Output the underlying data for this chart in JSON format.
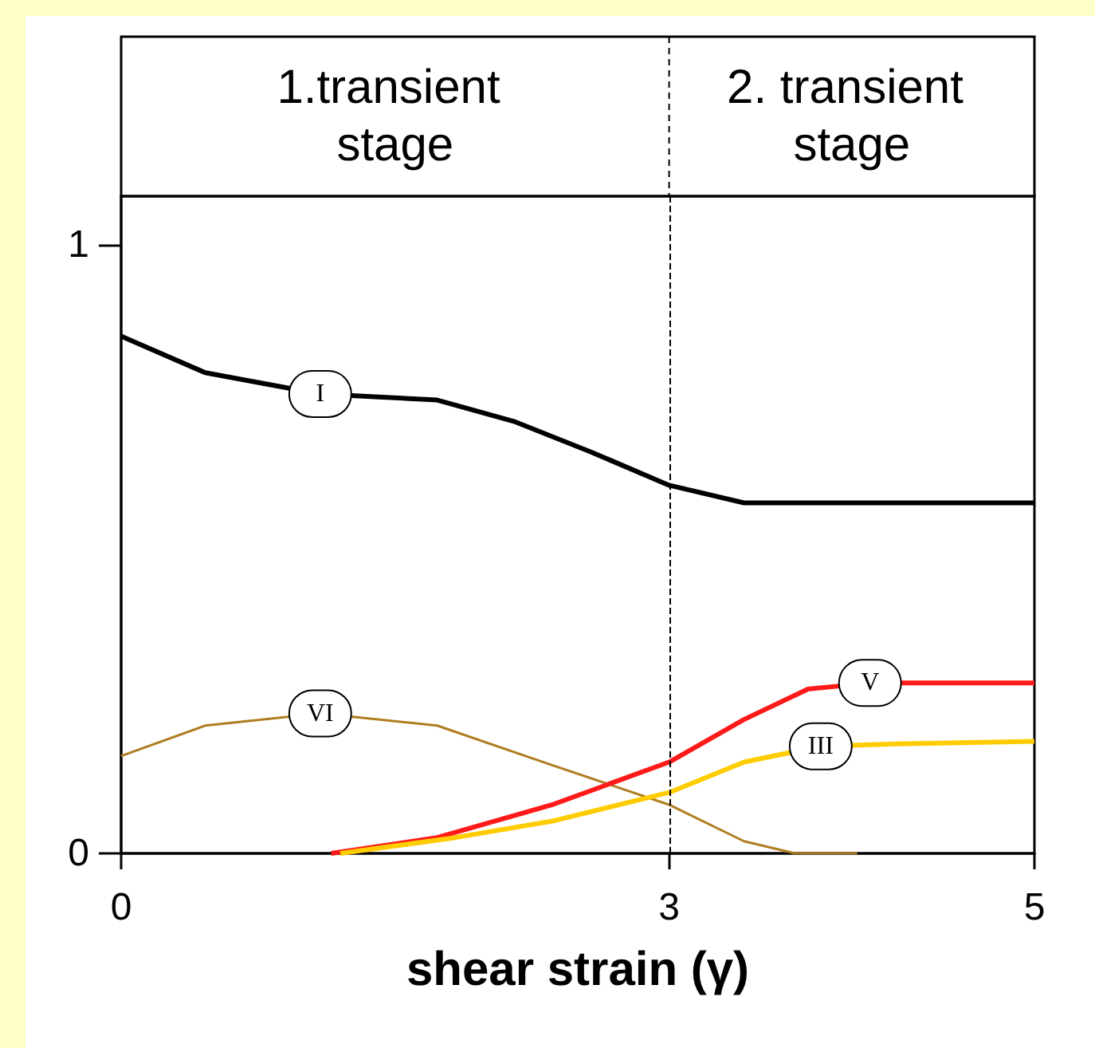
{
  "chart_data": {
    "type": "line",
    "xlabel": "shear strain (γ)",
    "annotations": [
      "1.transient stage",
      "2. transient stage"
    ],
    "xlim": [
      0,
      5
    ],
    "xticks": [
      0,
      3,
      5
    ],
    "ylim": [
      0,
      1.08
    ],
    "yticks": [
      0,
      1
    ],
    "grid": false,
    "legend": false,
    "marker": "none",
    "ref_lines": [
      {
        "axis": "x",
        "value": 3,
        "line_style": "dashed",
        "color": "#000000"
      }
    ],
    "series": [
      {
        "name": "I",
        "color": "#000000",
        "x": [
          0,
          0.46,
          1.09,
          1.73,
          2.15,
          2.57,
          3,
          3.41,
          3.97,
          5
        ],
        "values": [
          0.85,
          0.79,
          0.755,
          0.745,
          0.71,
          0.66,
          0.605,
          0.576,
          0.576,
          0.576
        ]
      },
      {
        "name": "VI",
        "color": "#b07d20",
        "x": [
          0,
          0.46,
          1.09,
          1.73,
          2.36,
          3,
          3.41,
          3.69,
          4.03
        ],
        "values": [
          0.16,
          0.21,
          0.23,
          0.21,
          0.145,
          0.08,
          0.02,
          0,
          0
        ]
      },
      {
        "name": "V",
        "color": "#ff1a1a",
        "x": [
          1.15,
          1.73,
          2.36,
          3,
          3.41,
          3.76,
          4.1,
          5
        ],
        "values": [
          0,
          0.026,
          0.08,
          0.15,
          0.22,
          0.27,
          0.28,
          0.28
        ]
      },
      {
        "name": "III",
        "color": "#ffcc00",
        "x": [
          1.2,
          1.83,
          2.36,
          3,
          3.41,
          3.83,
          4.24,
          5
        ],
        "values": [
          0,
          0.026,
          0.053,
          0.1,
          0.15,
          0.176,
          0.18,
          0.184
        ]
      }
    ]
  }
}
